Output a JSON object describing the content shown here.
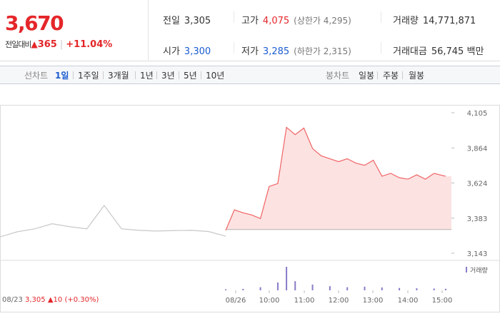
{
  "quote": {
    "price": "3,670",
    "change_label": "전일대비",
    "change_arrow": "▲",
    "change": "365",
    "change_pct": "+11.04%",
    "prev_close": {
      "label": "전일",
      "value": "3,305"
    },
    "open": {
      "label": "시가",
      "value": "3,300"
    },
    "high": {
      "label": "고가",
      "value": "4,075",
      "limit_text": "(상한가 4,295)"
    },
    "low": {
      "label": "저가",
      "value": "3,285",
      "limit_text": "(하한가 2,315)"
    },
    "volume": {
      "label": "거래량",
      "value": "14,771,871"
    },
    "amount": {
      "label": "거래대금",
      "value": "56,745",
      "unit": "백만"
    }
  },
  "period_bar": {
    "line_label": "선차트",
    "line_items": [
      "1일",
      "1주일",
      "3개월",
      "1년",
      "3년",
      "5년",
      "10년"
    ],
    "active": "1일",
    "candle_label": "봉차트",
    "candle_items": [
      "일봉",
      "주봉",
      "월봉"
    ]
  },
  "footer": {
    "prev_date": "08/23",
    "prev_close": "3,305",
    "prev_arrow": "▲",
    "prev_change": "10",
    "prev_pct": "(+0.30%)"
  },
  "colors": {
    "up": "#e4262a",
    "down": "#1a5cd1",
    "line": "#f06464",
    "fill": "#fde2e2",
    "prev_line": "#c8c8c8",
    "volume": "#8a7bc8"
  },
  "chart_data": {
    "type": "area",
    "ylim": [
      3143,
      4105
    ],
    "yticks": [
      4105,
      3864,
      3624,
      3383,
      3143
    ],
    "baseline": 3305,
    "volume_legend": "거래량",
    "x_labels": [
      "08/23",
      "08/26",
      "10:00",
      "11:00",
      "12:00",
      "13:00",
      "14:00",
      "15:00"
    ],
    "prev_day": {
      "date": "08/23",
      "x": [
        "09:00",
        "09:30",
        "10:00",
        "10:30",
        "11:00",
        "11:30",
        "12:00",
        "12:30",
        "13:00",
        "13:30",
        "14:00",
        "14:30",
        "15:00",
        "15:30"
      ],
      "values": [
        3255,
        3290,
        3310,
        3345,
        3325,
        3310,
        3470,
        3310,
        3300,
        3295,
        3298,
        3300,
        3292,
        3260
      ]
    },
    "series": [
      {
        "name": "08/26",
        "x": [
          "09:00",
          "09:15",
          "09:30",
          "09:45",
          "10:00",
          "10:15",
          "10:30",
          "10:45",
          "11:00",
          "11:15",
          "11:30",
          "11:45",
          "12:00",
          "12:15",
          "12:30",
          "12:45",
          "13:00",
          "13:15",
          "13:30",
          "13:45",
          "14:00",
          "14:15",
          "14:30",
          "14:45",
          "15:00",
          "15:20"
        ],
        "values": [
          3300,
          3440,
          3420,
          3405,
          3380,
          3600,
          3620,
          4005,
          3955,
          4000,
          3860,
          3810,
          3790,
          3770,
          3790,
          3760,
          3745,
          3780,
          3670,
          3690,
          3660,
          3650,
          3680,
          3650,
          3690,
          3670
        ]
      }
    ],
    "volume": {
      "x": [
        "09:00",
        "09:30",
        "10:00",
        "10:30",
        "10:45",
        "11:00",
        "11:30",
        "12:00",
        "12:30",
        "13:00",
        "13:30",
        "14:00",
        "14:30",
        "15:00",
        "15:20"
      ],
      "values": [
        40,
        55,
        120,
        300,
        900,
        350,
        220,
        160,
        120,
        140,
        110,
        90,
        80,
        70,
        60
      ]
    }
  }
}
